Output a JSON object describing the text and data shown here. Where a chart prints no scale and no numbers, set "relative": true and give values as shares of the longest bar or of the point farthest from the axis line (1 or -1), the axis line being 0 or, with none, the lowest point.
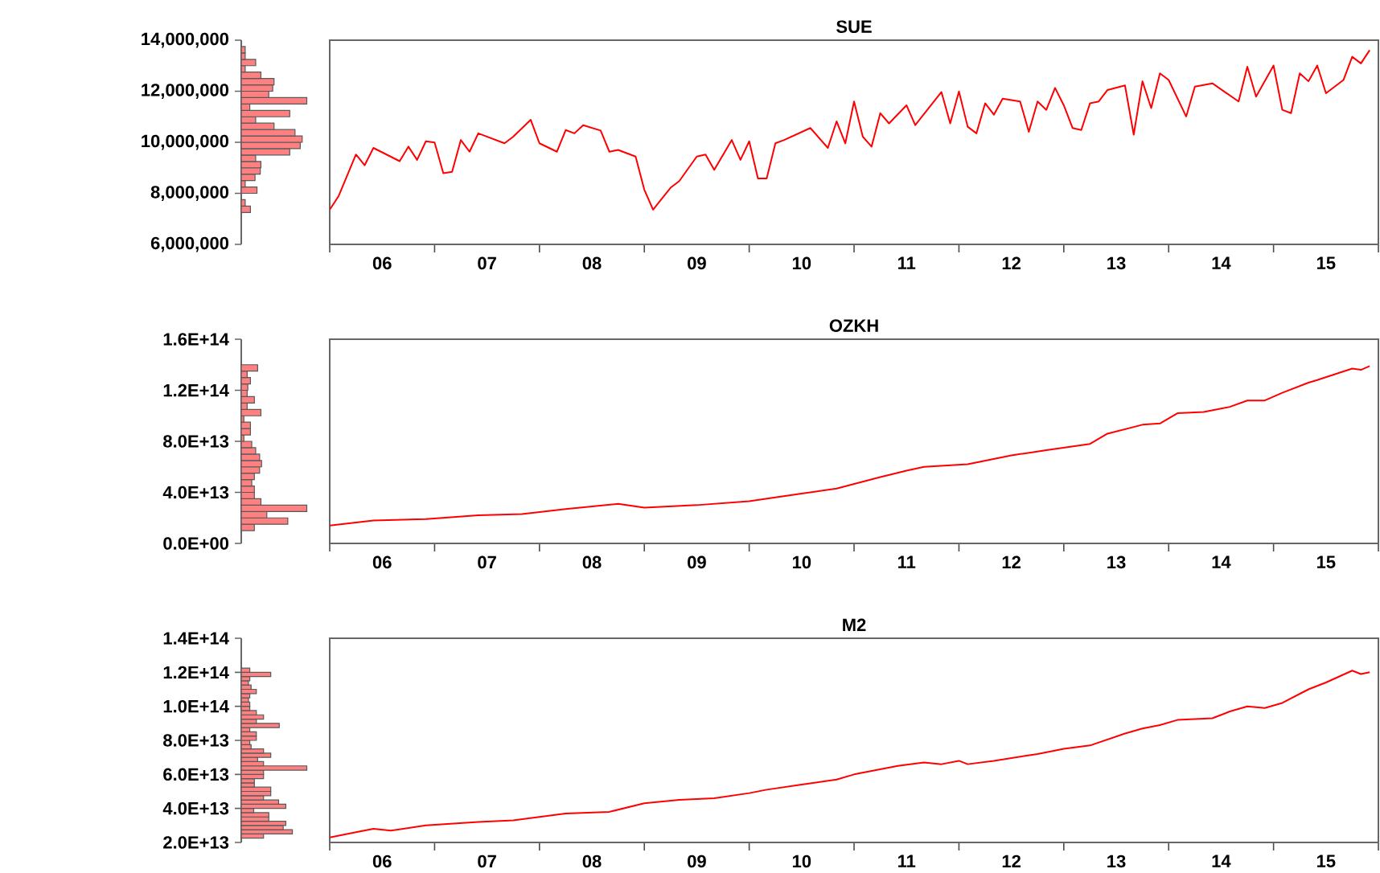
{
  "chart_data": [
    {
      "type": "bar",
      "orientation": "horizontal",
      "relative": true,
      "color": "#ff8080",
      "tick_labels": "y",
      "ylim": [
        6000000,
        14000000
      ],
      "yticks": [
        {
          "value": 6000000,
          "label": "6,000,000"
        },
        {
          "value": 8000000,
          "label": "8,000,000"
        },
        {
          "value": 10000000,
          "label": "10,000,000"
        },
        {
          "value": 12000000,
          "label": "12,000,000"
        },
        {
          "value": 14000000,
          "label": "14,000,000"
        }
      ],
      "x": [
        7125000,
        7375000,
        7625000,
        7875000,
        8125000,
        8375000,
        8625000,
        8875000,
        9125000,
        9375000,
        9625000,
        9875000,
        10125000,
        10375000,
        10625000,
        10875000,
        11125000,
        11375000,
        11625000,
        11875000,
        12125000,
        12375000,
        12625000,
        12875000,
        13125000,
        13375000,
        13625000
      ],
      "values": [
        0,
        0.14,
        0.06,
        0,
        0.24,
        0.06,
        0.21,
        0.29,
        0.3,
        0.22,
        0.74,
        0.9,
        0.93,
        0.82,
        0.5,
        0.22,
        0.74,
        0.13,
        1,
        0.42,
        0.48,
        0.5,
        0.3,
        0.06,
        0.22,
        0.06,
        0.06
      ]
    },
    {
      "type": "line",
      "title": "SUE",
      "color": "#ff0000",
      "tick_labels": "x",
      "ylim": [
        6000000,
        14000000
      ],
      "xlim": [
        "2006-01",
        "2016-01"
      ],
      "xticks": [
        {
          "value": "2006",
          "label": null
        },
        {
          "value": "2007",
          "label": null
        },
        {
          "value": "2008",
          "label": null
        },
        {
          "value": "2009",
          "label": null
        },
        {
          "value": "2010",
          "label": null
        },
        {
          "value": "2011",
          "label": null
        },
        {
          "value": "2012",
          "label": null
        },
        {
          "value": "2013",
          "label": null
        },
        {
          "value": "2014",
          "label": null
        },
        {
          "value": "2015",
          "label": null
        },
        {
          "value": "2016",
          "label": null
        },
        {
          "value": "2006-07",
          "label": "06"
        },
        {
          "value": "2007-07",
          "label": "07"
        },
        {
          "value": "2008-07",
          "label": "08"
        },
        {
          "value": "2009-07",
          "label": "09"
        },
        {
          "value": "2010-07",
          "label": "10"
        },
        {
          "value": "2011-07",
          "label": "11"
        },
        {
          "value": "2012-07",
          "label": "12"
        },
        {
          "value": "2013-07",
          "label": "13"
        },
        {
          "value": "2014-07",
          "label": "14"
        },
        {
          "value": "2015-07",
          "label": "15"
        }
      ],
      "x": [
        "2006-01",
        "2006-02",
        "2006-04",
        "2006-05",
        "2006-06",
        "2006-09",
        "2006-10",
        "2006-11",
        "2006-12",
        "2007-01",
        "2007-02",
        "2007-03",
        "2007-04",
        "2007-05",
        "2007-06",
        "2007-09",
        "2007-10",
        "2007-12",
        "2008-01",
        "2008-03",
        "2008-04",
        "2008-05",
        "2008-06",
        "2008-08",
        "2008-09",
        "2008-10",
        "2008-12",
        "2009-01",
        "2009-02",
        "2009-04",
        "2009-05",
        "2009-07",
        "2009-08",
        "2009-09",
        "2009-11",
        "2009-12",
        "2010-01",
        "2010-02",
        "2010-03",
        "2010-04",
        "2010-05",
        "2010-08",
        "2010-10",
        "2010-11",
        "2010-12",
        "2011-01",
        "2011-02",
        "2011-03",
        "2011-04",
        "2011-05",
        "2011-07",
        "2011-08",
        "2011-11",
        "2011-12",
        "2012-01",
        "2012-02",
        "2012-03",
        "2012-04",
        "2012-05",
        "2012-06",
        "2012-08",
        "2012-09",
        "2012-10",
        "2012-11",
        "2012-12",
        "2013-01",
        "2013-02",
        "2013-03",
        "2013-04",
        "2013-05",
        "2013-06",
        "2013-08",
        "2013-09",
        "2013-10",
        "2013-11",
        "2013-12",
        "2014-01",
        "2014-03",
        "2014-04",
        "2014-06",
        "2014-09",
        "2014-10",
        "2014-11",
        "2015-01",
        "2015-02",
        "2015-03",
        "2015-04",
        "2015-05",
        "2015-06",
        "2015-07",
        "2015-08",
        "2015-09",
        "2015-10",
        "2015-11",
        "2015-12"
      ],
      "values": [
        7360000,
        7880000,
        9520000,
        9100000,
        9780000,
        9260000,
        9830000,
        9310000,
        10040000,
        9990000,
        8790000,
        8840000,
        10090000,
        9630000,
        10350000,
        9960000,
        10220000,
        10880000,
        9960000,
        9630000,
        10480000,
        10350000,
        10670000,
        10460000,
        9630000,
        9700000,
        9440000,
        8140000,
        7360000,
        8220000,
        8480000,
        9440000,
        9520000,
        8920000,
        10090000,
        9310000,
        10040000,
        8580000,
        8580000,
        9960000,
        10090000,
        10560000,
        9780000,
        10820000,
        9960000,
        11600000,
        10220000,
        9830000,
        11140000,
        10740000,
        11450000,
        10670000,
        11970000,
        10740000,
        11990000,
        10610000,
        10350000,
        11530000,
        11080000,
        11710000,
        11600000,
        10410000,
        11600000,
        11270000,
        12130000,
        11450000,
        10560000,
        10480000,
        11530000,
        11600000,
        12050000,
        12230000,
        10300000,
        12390000,
        11340000,
        12700000,
        12440000,
        11010000,
        12180000,
        12310000,
        11600000,
        12960000,
        11790000,
        13010000,
        11270000,
        11140000,
        12700000,
        12390000,
        13010000,
        11920000,
        12180000,
        12440000,
        13350000,
        13090000,
        13610000
      ]
    },
    {
      "type": "bar",
      "orientation": "horizontal",
      "relative": true,
      "color": "#ff8080",
      "tick_labels": "y",
      "ylim": [
        0,
        160000000000000.0
      ],
      "yticks": [
        {
          "value": 0,
          "label": "0.0E+00"
        },
        {
          "value": 40000000000000.0,
          "label": "4.0E+13"
        },
        {
          "value": 80000000000000.0,
          "label": "8.0E+13"
        },
        {
          "value": 120000000000000.0,
          "label": "1.2E+14"
        },
        {
          "value": 160000000000000.0,
          "label": "1.6E+14"
        }
      ],
      "x": [
        12500000000000.0,
        17500000000000.0,
        22500000000000.0,
        27500000000000.0,
        32500000000000.0,
        37500000000000.0,
        42500000000000.0,
        47500000000000.0,
        52500000000000.0,
        57500000000000.0,
        62500000000000.0,
        67500000000000.0,
        72500000000000.0,
        77500000000000.0,
        82500000000000.0,
        87500000000000.0,
        92500000000000.0,
        97500000000000.0,
        102500000000000.0,
        107500000000000.0,
        112500000000000.0,
        117500000000000.0,
        122500000000000.0,
        127500000000000.0,
        132500000000000.0,
        137500000000000.0
      ],
      "values": [
        0.2,
        0.71,
        0.39,
        1,
        0.3,
        0.2,
        0.2,
        0.16,
        0.2,
        0.28,
        0.31,
        0.28,
        0.22,
        0.16,
        0.04,
        0.14,
        0.14,
        0.04,
        0.3,
        0.09,
        0.2,
        0.09,
        0.1,
        0.14,
        0.09,
        0.25
      ]
    },
    {
      "type": "line",
      "title": "OZKH",
      "color": "#ff0000",
      "tick_labels": "x",
      "ylim": [
        0,
        160000000000000.0
      ],
      "xlim": [
        "2006-01",
        "2016-01"
      ],
      "xticks": [
        {
          "value": "2006",
          "label": null
        },
        {
          "value": "2007",
          "label": null
        },
        {
          "value": "2008",
          "label": null
        },
        {
          "value": "2009",
          "label": null
        },
        {
          "value": "2010",
          "label": null
        },
        {
          "value": "2011",
          "label": null
        },
        {
          "value": "2012",
          "label": null
        },
        {
          "value": "2013",
          "label": null
        },
        {
          "value": "2014",
          "label": null
        },
        {
          "value": "2015",
          "label": null
        },
        {
          "value": "2016",
          "label": null
        },
        {
          "value": "2006-07",
          "label": "06"
        },
        {
          "value": "2007-07",
          "label": "07"
        },
        {
          "value": "2008-07",
          "label": "08"
        },
        {
          "value": "2009-07",
          "label": "09"
        },
        {
          "value": "2010-07",
          "label": "10"
        },
        {
          "value": "2011-07",
          "label": "11"
        },
        {
          "value": "2012-07",
          "label": "12"
        },
        {
          "value": "2013-07",
          "label": "13"
        },
        {
          "value": "2014-07",
          "label": "14"
        },
        {
          "value": "2015-07",
          "label": "15"
        }
      ],
      "x": [
        "2006-01",
        "2006-06",
        "2006-12",
        "2007-06",
        "2007-11",
        "2008-04",
        "2008-10",
        "2009-01",
        "2009-07",
        "2010-01",
        "2010-07",
        "2010-11",
        "2011-04",
        "2011-07",
        "2011-09",
        "2012-02",
        "2012-07",
        "2012-11",
        "2013-04",
        "2013-06",
        "2013-10",
        "2013-12",
        "2014-02",
        "2014-05",
        "2014-08",
        "2014-10",
        "2014-12",
        "2015-02",
        "2015-05",
        "2015-06",
        "2015-10",
        "2015-11",
        "2015-12"
      ],
      "values": [
        14000000000000.0,
        18000000000000.0,
        19000000000000.0,
        22000000000000.0,
        23000000000000.0,
        27000000000000.0,
        31000000000000.0,
        28000000000000.0,
        30000000000000.0,
        33000000000000.0,
        39000000000000.0,
        43000000000000.0,
        52000000000000.0,
        57000000000000.0,
        60000000000000.0,
        62000000000000.0,
        69000000000000.0,
        73000000000000.0,
        78000000000000.0,
        86000000000000.0,
        93000000000000.0,
        94000000000000.0,
        102000000000000.0,
        103000000000000.0,
        107000000000000.0,
        112000000000000.0,
        112000000000000.0,
        118000000000000.0,
        126000000000000.0,
        128000000000000.0,
        137000000000000.0,
        136000000000000.0,
        139000000000000.0
      ]
    },
    {
      "type": "bar",
      "orientation": "horizontal",
      "relative": true,
      "color": "#ff8080",
      "tick_labels": "y",
      "ylim": [
        20000000000000.0,
        140000000000000.0
      ],
      "yticks": [
        {
          "value": 20000000000000.0,
          "label": "2.0E+13"
        },
        {
          "value": 40000000000000.0,
          "label": "4.0E+13"
        },
        {
          "value": 60000000000000.0,
          "label": "6.0E+13"
        },
        {
          "value": 80000000000000.0,
          "label": "8.0E+13"
        },
        {
          "value": 100000000000000.0,
          "label": "1.0E+14"
        },
        {
          "value": 120000000000000.0,
          "label": "1.2E+14"
        },
        {
          "value": 140000000000000.0,
          "label": "1.4E+14"
        }
      ],
      "x": [
        23750000000000.0,
        26250000000000.0,
        28750000000000.0,
        31250000000000.0,
        33750000000000.0,
        36250000000000.0,
        38750000000000.0,
        41250000000000.0,
        43750000000000.0,
        46250000000000.0,
        48750000000000.0,
        51250000000000.0,
        53750000000000.0,
        56250000000000.0,
        58750000000000.0,
        61250000000000.0,
        63750000000000.0,
        66250000000000.0,
        68750000000000.0,
        71250000000000.0,
        73750000000000.0,
        76250000000000.0,
        78750000000000.0,
        81250000000000.0,
        83750000000000.0,
        86250000000000.0,
        88750000000000.0,
        91250000000000.0,
        93750000000000.0,
        96250000000000.0,
        98750000000000.0,
        101250000000000.0,
        103750000000000.0,
        106250000000000.0,
        108750000000000.0,
        111250000000000.0,
        113750000000000.0,
        116250000000000.0,
        118750000000000.0,
        121250000000000.0
      ],
      "values": [
        0.34,
        0.78,
        0.64,
        0.68,
        0.42,
        0.42,
        0.19,
        0.68,
        0.57,
        0.34,
        0.45,
        0.45,
        0.2,
        0.2,
        0.34,
        0.34,
        1,
        0.34,
        0.25,
        0.45,
        0.34,
        0.15,
        0.13,
        0.23,
        0.23,
        0.13,
        0.58,
        0.23,
        0.34,
        0.23,
        0.13,
        0.13,
        0.11,
        0.13,
        0.23,
        0.15,
        0.11,
        0.13,
        0.45,
        0.13
      ]
    },
    {
      "type": "line",
      "title": "M2",
      "color": "#ff0000",
      "tick_labels": "x",
      "ylim": [
        20000000000000.0,
        140000000000000.0
      ],
      "xlim": [
        "2006-01",
        "2016-01"
      ],
      "xticks": [
        {
          "value": "2006",
          "label": null
        },
        {
          "value": "2007",
          "label": null
        },
        {
          "value": "2008",
          "label": null
        },
        {
          "value": "2009",
          "label": null
        },
        {
          "value": "2010",
          "label": null
        },
        {
          "value": "2011",
          "label": null
        },
        {
          "value": "2012",
          "label": null
        },
        {
          "value": "2013",
          "label": null
        },
        {
          "value": "2014",
          "label": null
        },
        {
          "value": "2015",
          "label": null
        },
        {
          "value": "2016",
          "label": null
        },
        {
          "value": "2006-07",
          "label": "06"
        },
        {
          "value": "2007-07",
          "label": "07"
        },
        {
          "value": "2008-07",
          "label": "08"
        },
        {
          "value": "2009-07",
          "label": "09"
        },
        {
          "value": "2010-07",
          "label": "10"
        },
        {
          "value": "2011-07",
          "label": "11"
        },
        {
          "value": "2012-07",
          "label": "12"
        },
        {
          "value": "2013-07",
          "label": "13"
        },
        {
          "value": "2014-07",
          "label": "14"
        },
        {
          "value": "2015-07",
          "label": "15"
        }
      ],
      "x": [
        "2006-01",
        "2006-04",
        "2006-06",
        "2006-08",
        "2006-12",
        "2007-06",
        "2007-10",
        "2008-01",
        "2008-04",
        "2008-09",
        "2009-01",
        "2009-05",
        "2009-09",
        "2010-01",
        "2010-03",
        "2010-07",
        "2010-11",
        "2011-01",
        "2011-06",
        "2011-09",
        "2011-11",
        "2012-01",
        "2012-02",
        "2012-05",
        "2012-10",
        "2013-01",
        "2013-04",
        "2013-08",
        "2013-10",
        "2013-12",
        "2014-02",
        "2014-06",
        "2014-08",
        "2014-10",
        "2014-12",
        "2015-02",
        "2015-05",
        "2015-07",
        "2015-10",
        "2015-11",
        "2015-12"
      ],
      "values": [
        23000000000000.0,
        26000000000000.0,
        28000000000000.0,
        27000000000000.0,
        30000000000000.0,
        32000000000000.0,
        33000000000000.0,
        35000000000000.0,
        37000000000000.0,
        38000000000000.0,
        43000000000000.0,
        45000000000000.0,
        46000000000000.0,
        49000000000000.0,
        51000000000000.0,
        54000000000000.0,
        57000000000000.0,
        60000000000000.0,
        65000000000000.0,
        67000000000000.0,
        66000000000000.0,
        68000000000000.0,
        66000000000000.0,
        68000000000000.0,
        72000000000000.0,
        75000000000000.0,
        77000000000000.0,
        84000000000000.0,
        87000000000000.0,
        89000000000000.0,
        92000000000000.0,
        93000000000000.0,
        97000000000000.0,
        100000000000000.0,
        99000000000000.0,
        102000000000000.0,
        110000000000000.0,
        114000000000000.0,
        121000000000000.0,
        119000000000000.0,
        120000000000000.0
      ]
    }
  ]
}
